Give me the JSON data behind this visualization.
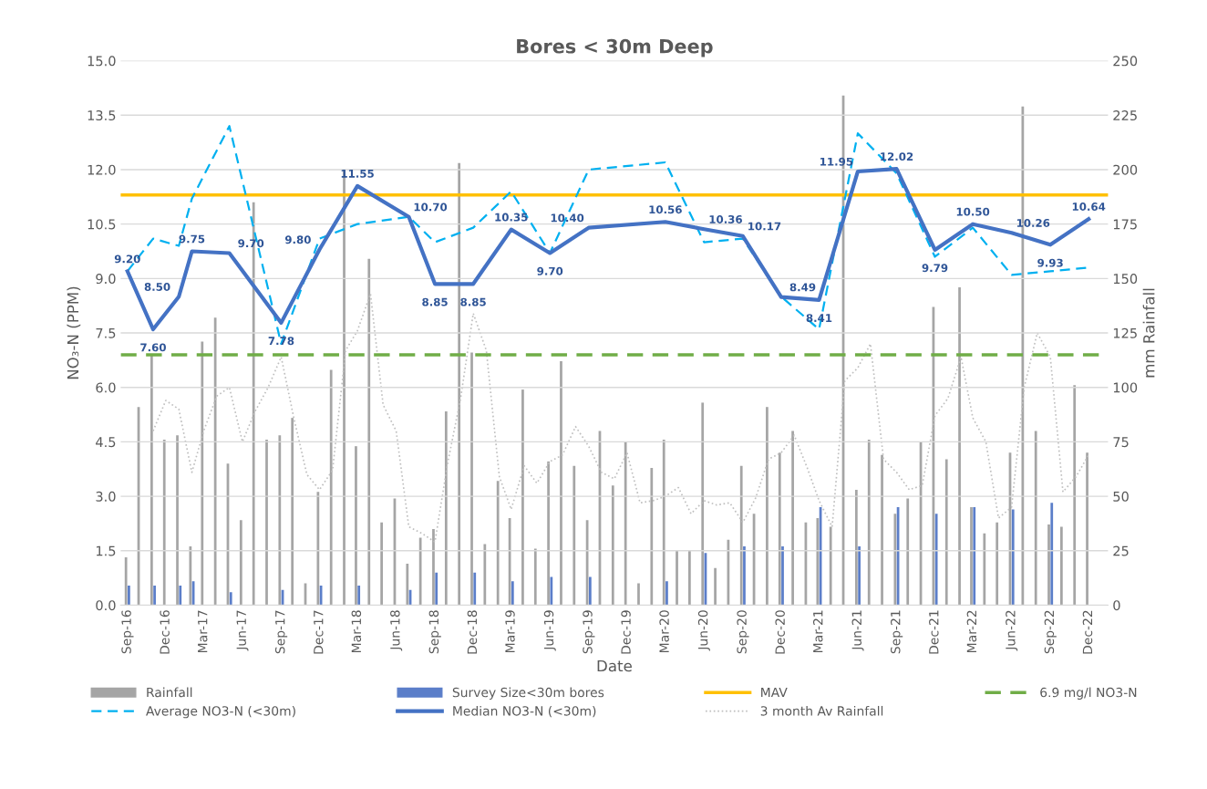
{
  "chart_data": {
    "type": "line",
    "title": "Bores < 30m Deep",
    "xlabel": "Date",
    "ylabel": "NO₃-N (PPM)",
    "y2label": "mm Rainfall",
    "x": [
      "2016-09",
      "2016-10",
      "2016-11",
      "2016-12",
      "2017-01",
      "2017-02",
      "2017-03",
      "2017-04",
      "2017-05",
      "2017-06",
      "2017-07",
      "2017-08",
      "2017-09",
      "2017-10",
      "2017-11",
      "2017-12",
      "2018-01",
      "2018-02",
      "2018-03",
      "2018-04",
      "2018-05",
      "2018-06",
      "2018-07",
      "2018-08",
      "2018-09",
      "2018-10",
      "2018-11",
      "2018-12",
      "2019-01",
      "2019-02",
      "2019-03",
      "2019-04",
      "2019-05",
      "2019-06",
      "2019-07",
      "2019-08",
      "2019-09",
      "2019-10",
      "2019-11",
      "2019-12",
      "2020-01",
      "2020-02",
      "2020-03",
      "2020-04",
      "2020-05",
      "2020-06",
      "2020-07",
      "2020-08",
      "2020-09",
      "2020-10",
      "2020-11",
      "2020-12",
      "2021-01",
      "2021-02",
      "2021-03",
      "2021-04",
      "2021-05",
      "2021-06",
      "2021-07",
      "2021-08",
      "2021-09",
      "2021-10",
      "2021-11",
      "2021-12",
      "2022-01",
      "2022-02",
      "2022-03",
      "2022-04",
      "2022-05",
      "2022-06",
      "2022-07",
      "2022-08",
      "2022-09",
      "2022-10",
      "2022-11",
      "2022-12"
    ],
    "series": [
      {
        "name": "Rainfall",
        "type": "bar",
        "axis": "y2",
        "color": "#a5a5a5",
        "values": [
          22,
          91,
          115,
          76,
          78,
          27,
          121,
          132,
          65,
          39,
          185,
          76,
          78,
          86,
          10,
          52,
          108,
          200,
          73,
          159,
          38,
          49,
          19,
          31,
          35,
          89,
          203,
          116,
          28,
          57,
          40,
          99,
          26,
          66,
          112,
          64,
          39,
          80,
          55,
          75,
          10,
          63,
          76,
          25,
          25,
          93,
          17,
          30,
          64,
          42,
          91,
          70,
          80,
          38,
          40,
          36,
          234,
          53,
          76,
          69,
          42,
          49,
          75,
          137,
          67,
          146,
          45,
          33,
          38,
          70,
          229,
          80,
          37,
          36,
          101,
          70
        ]
      },
      {
        "name": "Survey Size<30m bores",
        "type": "bar",
        "axis": "y2",
        "color": "#5b7ec9",
        "x": [
          "2016-09",
          "2016-11",
          "2017-01",
          "2017-02",
          "2017-05",
          "2017-09",
          "2017-12",
          "2018-03",
          "2018-07",
          "2018-09",
          "2018-12",
          "2019-03",
          "2019-06",
          "2019-09",
          "2020-03",
          "2020-06",
          "2020-09",
          "2020-12",
          "2021-03",
          "2021-06",
          "2021-09",
          "2021-12",
          "2022-03",
          "2022-06",
          "2022-09"
        ],
        "values": [
          9,
          9,
          9,
          11,
          6,
          7,
          9,
          9,
          7,
          15,
          15,
          11,
          13,
          13,
          11,
          24,
          27,
          27,
          45,
          27,
          45,
          42,
          45,
          44,
          47
        ]
      },
      {
        "name": "Average NO3-N (<30m)",
        "line_style": "dashed",
        "color": "#00b0f0",
        "x": [
          "2016-09",
          "2016-11",
          "2017-01",
          "2017-02",
          "2017-05",
          "2017-09",
          "2017-12",
          "2018-03",
          "2018-07",
          "2018-09",
          "2018-12",
          "2019-03",
          "2019-06",
          "2019-09",
          "2020-03",
          "2020-06",
          "2020-09",
          "2020-12",
          "2021-03",
          "2021-06",
          "2021-09",
          "2021-12",
          "2022-03",
          "2022-06",
          "2022-09",
          "2022-12"
        ],
        "values": [
          9.2,
          10.1,
          9.9,
          11.2,
          13.2,
          7.2,
          10.1,
          10.5,
          10.7,
          10.0,
          10.4,
          11.4,
          9.7,
          12.0,
          12.2,
          10.0,
          10.1,
          8.5,
          7.6,
          13.0,
          11.9,
          9.6,
          10.4,
          9.1,
          9.2,
          9.3
        ]
      },
      {
        "name": "Median NO3-N (<30m)",
        "line_style": "solid",
        "color": "#4472c4",
        "x": [
          "2016-09",
          "2016-11",
          "2017-01",
          "2017-02",
          "2017-05",
          "2017-09",
          "2017-12",
          "2018-03",
          "2018-07",
          "2018-09",
          "2018-12",
          "2019-03",
          "2019-06",
          "2019-09",
          "2020-03",
          "2020-06",
          "2020-09",
          "2020-12",
          "2021-03",
          "2021-06",
          "2021-09",
          "2021-12",
          "2022-03",
          "2022-06",
          "2022-09",
          "2022-12"
        ],
        "values": [
          9.2,
          7.6,
          8.5,
          9.75,
          9.7,
          7.78,
          9.8,
          11.55,
          10.7,
          8.85,
          8.85,
          10.35,
          9.7,
          10.4,
          10.56,
          10.36,
          10.17,
          8.49,
          8.41,
          11.95,
          12.02,
          9.79,
          10.5,
          10.26,
          9.93,
          10.64
        ],
        "value_labels": [
          "9.20",
          "7.60",
          "8.50",
          "9.75",
          "9.70",
          "7.78",
          "9.80",
          "11.55",
          "10.70",
          "8.85",
          "8.85",
          "10.35",
          "9.70",
          "10.40",
          "10.56",
          "10.36",
          "10.17",
          "8.49",
          "8.41",
          "11.95",
          "12.02",
          "9.79",
          "10.50",
          "10.26",
          "9.93",
          "10.64"
        ]
      },
      {
        "name": "3 month Av Rainfall",
        "line_style": "dotted",
        "axis": "y2",
        "color": "#bfbfbf",
        "values": [
          null,
          null,
          80,
          94,
          90,
          61,
          80,
          96,
          100,
          75,
          89,
          100,
          114,
          86,
          60,
          53,
          62,
          117,
          126,
          143,
          92,
          80,
          36,
          33,
          29,
          65,
          95,
          134,
          117,
          59,
          44,
          64,
          56,
          66,
          69,
          82,
          73,
          61,
          58,
          70,
          47,
          48,
          50,
          54,
          42,
          48,
          46,
          47,
          38,
          49,
          67,
          70,
          78,
          63,
          48,
          36,
          103,
          109,
          120,
          67,
          61,
          53,
          55,
          87,
          95,
          114,
          86,
          75,
          40,
          45,
          100,
          125,
          114,
          52,
          59,
          69
        ]
      }
    ],
    "ref_lines": [
      {
        "axis": "y",
        "value": 11.3,
        "label": "MAV",
        "color": "#ffc000",
        "line_style": "solid"
      },
      {
        "axis": "y",
        "value": 6.9,
        "label": "6.9 mg/l NO3-N",
        "color": "#70ad47",
        "line_style": "dashed"
      }
    ],
    "xlim": [
      "2016-08-16",
      "2023-01-16"
    ],
    "xticks": [
      {
        "value": "2016-09",
        "label": "Sep-16"
      },
      {
        "value": "2016-12",
        "label": "Dec-16"
      },
      {
        "value": "2017-03",
        "label": "Mar-17"
      },
      {
        "value": "2017-06",
        "label": "Jun-17"
      },
      {
        "value": "2017-09",
        "label": "Sep-17"
      },
      {
        "value": "2017-12",
        "label": "Dec-17"
      },
      {
        "value": "2018-03",
        "label": "Mar-18"
      },
      {
        "value": "2018-06",
        "label": "Jun-18"
      },
      {
        "value": "2018-09",
        "label": "Sep-18"
      },
      {
        "value": "2018-12",
        "label": "Dec-18"
      },
      {
        "value": "2019-03",
        "label": "Mar-19"
      },
      {
        "value": "2019-06",
        "label": "Jun-19"
      },
      {
        "value": "2019-09",
        "label": "Sep-19"
      },
      {
        "value": "2019-12",
        "label": "Dec-19"
      },
      {
        "value": "2020-03",
        "label": "Mar-20"
      },
      {
        "value": "2020-06",
        "label": "Jun-20"
      },
      {
        "value": "2020-09",
        "label": "Sep-20"
      },
      {
        "value": "2020-12",
        "label": "Dec-20"
      },
      {
        "value": "2021-03",
        "label": "Mar-21"
      },
      {
        "value": "2021-06",
        "label": "Jun-21"
      },
      {
        "value": "2021-09",
        "label": "Sep-21"
      },
      {
        "value": "2021-12",
        "label": "Dec-21"
      },
      {
        "value": "2022-03",
        "label": "Mar-22"
      },
      {
        "value": "2022-06",
        "label": "Jun-22"
      },
      {
        "value": "2022-09",
        "label": "Sep-22"
      },
      {
        "value": "2022-12",
        "label": "Dec-22"
      }
    ],
    "ylim": [
      0,
      15
    ],
    "yticks": [
      {
        "value": 0,
        "label": "0.0"
      },
      {
        "value": 1.5,
        "label": "1.5"
      },
      {
        "value": 3,
        "label": "3.0"
      },
      {
        "value": 4.5,
        "label": "4.5"
      },
      {
        "value": 6,
        "label": "6.0"
      },
      {
        "value": 7.5,
        "label": "7.5"
      },
      {
        "value": 9,
        "label": "9.0"
      },
      {
        "value": 10.5,
        "label": "10.5"
      },
      {
        "value": 12,
        "label": "12.0"
      },
      {
        "value": 13.5,
        "label": "13.5"
      },
      {
        "value": 15,
        "label": "15.0"
      }
    ],
    "y2lim": [
      0,
      250
    ],
    "y2ticks": [
      0,
      25,
      50,
      75,
      100,
      125,
      150,
      175,
      200,
      225,
      250
    ],
    "grid": "y",
    "legend": "bottom",
    "marker": "none"
  }
}
